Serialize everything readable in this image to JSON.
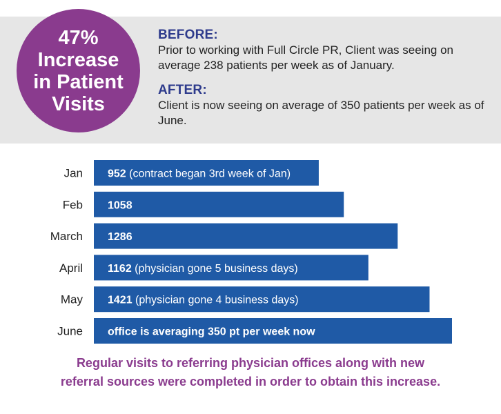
{
  "badge": {
    "text": "47% Increase in Patient Visits"
  },
  "before": {
    "heading": "BEFORE:",
    "text": "Prior to working with Full Circle PR, Client was seeing on average 238 patients per week as of January."
  },
  "after": {
    "heading": "AFTER:",
    "text": "Client is now seeing on average of 350 patients per week as of June."
  },
  "chart_data": {
    "type": "bar",
    "orientation": "horizontal",
    "categories": [
      "Jan",
      "Feb",
      "March",
      "April",
      "May",
      "June"
    ],
    "values": [
      952,
      1058,
      1286,
      1162,
      1421,
      1516
    ],
    "value_labels": [
      "952",
      "1058",
      "1286",
      "1162",
      "1421",
      ""
    ],
    "notes": [
      " (contract began 3rd week of Jan)",
      "",
      "",
      " (physician gone 5 business days)",
      " (physician gone 4 business days)",
      "office is averaging 350 pt per week now"
    ],
    "bar_color": "#1f5aa6",
    "xlim": [
      0,
      1516
    ]
  },
  "footer": {
    "line1": "Regular visits to referring physician offices along with new",
    "line2": "referral sources were completed in order to obtain this increase."
  }
}
